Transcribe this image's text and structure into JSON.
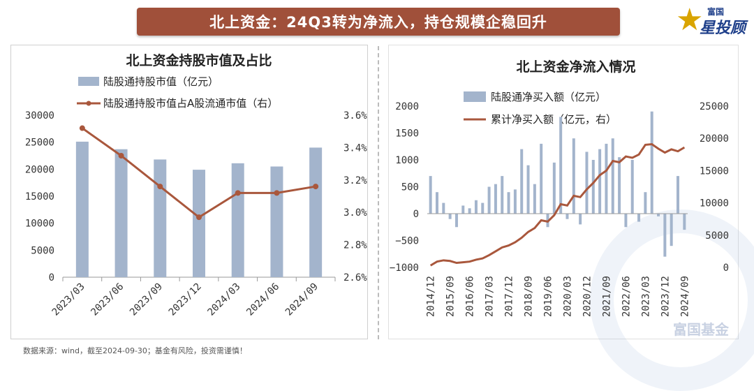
{
  "banner": {
    "title": "北上资金：24Q3转为净流入，持仓规模企稳回升"
  },
  "logo": {
    "small": "富国",
    "large": "星投顾"
  },
  "source_note": "数据来源：wind，截至2024-09-30；基金有风险，投资需谨慎！",
  "watermark": "富国基金",
  "colors": {
    "bar": "#a3b4cc",
    "line": "#a9573c",
    "banner": "#a0503a"
  },
  "chart_data": [
    {
      "type": "bar",
      "title": "北上资金持股市值及占比",
      "categories": [
        "2023/03",
        "2023/06",
        "2023/09",
        "2023/12",
        "2024/03",
        "2024/06",
        "2024/09"
      ],
      "series": [
        {
          "name": "陆股通持股市值（亿元）",
          "type": "bar",
          "axis": "left",
          "values": [
            25100,
            23700,
            21800,
            19900,
            21100,
            20500,
            24000
          ]
        },
        {
          "name": "陆股通持股市值占A股流通市值（右）",
          "type": "line",
          "axis": "right",
          "values": [
            3.52,
            3.35,
            3.16,
            2.97,
            3.12,
            3.12,
            3.16
          ]
        }
      ],
      "ylim_left": [
        0,
        30000
      ],
      "yticks_left": [
        "0",
        "5000",
        "10000",
        "15000",
        "20000",
        "25000",
        "30000"
      ],
      "ylim_right": [
        2.6,
        3.6
      ],
      "yticks_right": [
        "2.6%",
        "2.8%",
        "3.0%",
        "3.2%",
        "3.4%",
        "3.6%"
      ],
      "legend": "top-left"
    },
    {
      "type": "bar",
      "title": "北上资金净流入情况",
      "categories": [
        "2014/12",
        "2015/03",
        "2015/06",
        "2015/09",
        "2015/12",
        "2016/03",
        "2016/06",
        "2016/09",
        "2016/12",
        "2017/03",
        "2017/06",
        "2017/09",
        "2017/12",
        "2018/03",
        "2018/06",
        "2018/09",
        "2018/12",
        "2019/03",
        "2019/06",
        "2019/09",
        "2019/12",
        "2020/03",
        "2020/06",
        "2020/09",
        "2020/12",
        "2021/03",
        "2021/06",
        "2021/09",
        "2021/12",
        "2022/03",
        "2022/06",
        "2022/09",
        "2022/12",
        "2023/03",
        "2023/06",
        "2023/09",
        "2023/12",
        "2024/03",
        "2024/06",
        "2024/09"
      ],
      "xtick_labels": [
        "2014/12",
        "2015/09",
        "2016/06",
        "2017/03",
        "2017/12",
        "2018/09",
        "2019/06",
        "2020/03",
        "2020/12",
        "2021/09",
        "2022/06",
        "2023/03",
        "2023/12",
        "2024/09"
      ],
      "series": [
        {
          "name": "陆股通净买入额（亿元）",
          "type": "bar",
          "axis": "left",
          "values": [
            700,
            400,
            200,
            -100,
            -250,
            150,
            100,
            250,
            200,
            500,
            550,
            700,
            400,
            450,
            1200,
            900,
            550,
            1300,
            -250,
            950,
            1800,
            -100,
            1400,
            -200,
            1150,
            1000,
            1200,
            1300,
            1400,
            1050,
            -250,
            1000,
            -150,
            400,
            1900,
            -50,
            -800,
            -600,
            700,
            -300
          ]
        },
        {
          "name": "累计净买入额（亿元，右）",
          "type": "line",
          "axis": "right",
          "values": [
            300,
            900,
            1100,
            1000,
            700,
            800,
            900,
            1200,
            1400,
            1900,
            2500,
            3100,
            3400,
            3900,
            4600,
            5500,
            6100,
            7300,
            7100,
            8100,
            9800,
            9600,
            11100,
            10900,
            12100,
            13100,
            14300,
            15000,
            16500,
            16300,
            17200,
            17000,
            17500,
            19000,
            19100,
            18400,
            17800,
            18300,
            18000,
            18600
          ]
        }
      ],
      "ylim_left": [
        -1000,
        2000
      ],
      "yticks_left": [
        "−1000",
        "−500",
        "0",
        "500",
        "1000",
        "1500",
        "2000"
      ],
      "ylim_right": [
        0,
        25000
      ],
      "yticks_right": [
        "0",
        "5000",
        "10000",
        "15000",
        "20000",
        "25000"
      ],
      "legend": "top-center"
    }
  ]
}
